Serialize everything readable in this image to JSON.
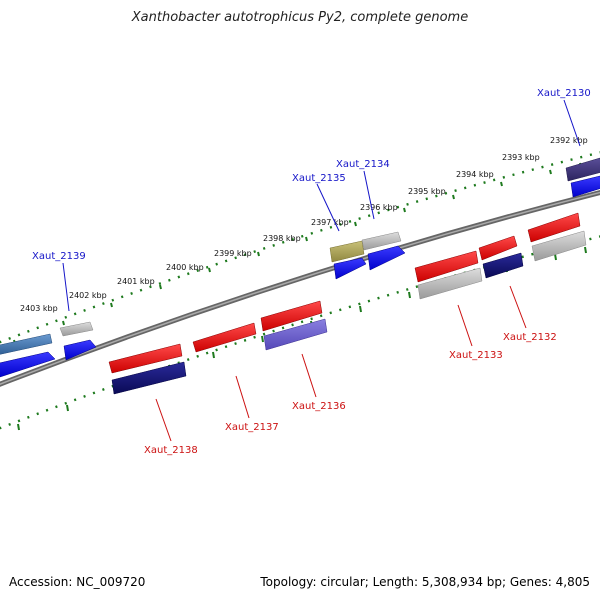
{
  "title": "Xanthobacter autotrophicus Py2, complete genome",
  "footer": {
    "accession": "Accession: NC_009720",
    "summary": "Topology: circular; Length: 5,308,934 bp; Genes: 4,805"
  },
  "colors": {
    "backbone": "#777777",
    "ticks": "#1e7a1e",
    "label_top": "#1515c8",
    "label_bottom": "#cc1111"
  },
  "scale_labels": [
    "2403 kbp",
    "2402 kbp",
    "2401 kbp",
    "2400 kbp",
    "2399 kbp",
    "2398 kbp",
    "2397 kbp",
    "2396 kbp",
    "2395 kbp",
    "2394 kbp",
    "2393 kbp",
    "2392 kbp"
  ],
  "genes_top": [
    "Xaut_2139",
    "Xaut_2135",
    "Xaut_2134",
    "Xaut_2130"
  ],
  "genes_bottom": [
    "Xaut_2138",
    "Xaut_2137",
    "Xaut_2136",
    "Xaut_2133",
    "Xaut_2132"
  ]
}
